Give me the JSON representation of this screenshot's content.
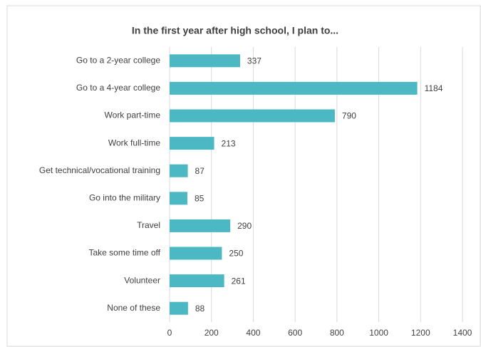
{
  "chart_data": {
    "type": "bar",
    "title": "In the first year after high school, I plan to...",
    "categories": [
      "Go to a 2-year college",
      "Go to a 4-year college",
      "Work part-time",
      "Work full-time",
      "Get technical/vocational training",
      "Go into the military",
      "Travel",
      "Take some time off",
      "Volunteer",
      "None of these"
    ],
    "values": [
      337,
      1184,
      790,
      213,
      87,
      85,
      290,
      250,
      261,
      88
    ],
    "color": "#4bb8c4",
    "xlim": [
      0,
      1400
    ],
    "xticks": [
      0,
      200,
      400,
      600,
      800,
      1000,
      1200,
      1400
    ],
    "grid": true
  }
}
